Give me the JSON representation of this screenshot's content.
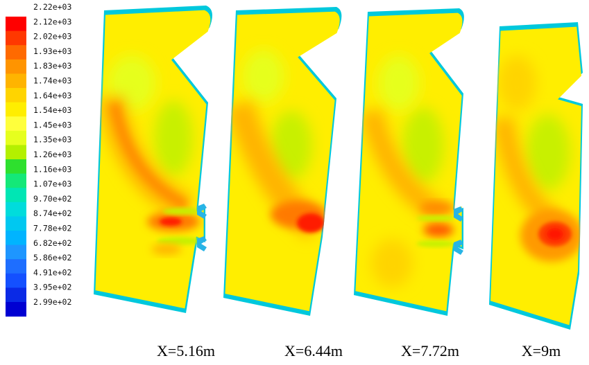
{
  "legend": {
    "labels": [
      "2.22e+03",
      "2.12e+03",
      "2.02e+03",
      "1.93e+03",
      "1.83e+03",
      "1.74e+03",
      "1.64e+03",
      "1.54e+03",
      "1.45e+03",
      "1.35e+03",
      "1.26e+03",
      "1.16e+03",
      "1.07e+03",
      "9.70e+02",
      "8.74e+02",
      "7.78e+02",
      "6.82e+02",
      "5.86e+02",
      "4.91e+02",
      "3.95e+02",
      "2.99e+02"
    ],
    "colors": [
      "#ff0000",
      "#ff3800",
      "#ff6a00",
      "#ff9400",
      "#ffb400",
      "#ffd400",
      "#ffee00",
      "#ffff3c",
      "#e6ff1e",
      "#b4f000",
      "#2ee02e",
      "#14e878",
      "#00e6b4",
      "#00dcdc",
      "#00c8f0",
      "#00b4ff",
      "#1e96ff",
      "#1e6eff",
      "#1450ff",
      "#0a2ae6",
      "#0000d2"
    ]
  },
  "panels": [
    {
      "caption": "X=5.16m"
    },
    {
      "caption": "X=6.44m"
    },
    {
      "caption": "X=7.72m"
    },
    {
      "caption": "X=9m"
    }
  ]
}
